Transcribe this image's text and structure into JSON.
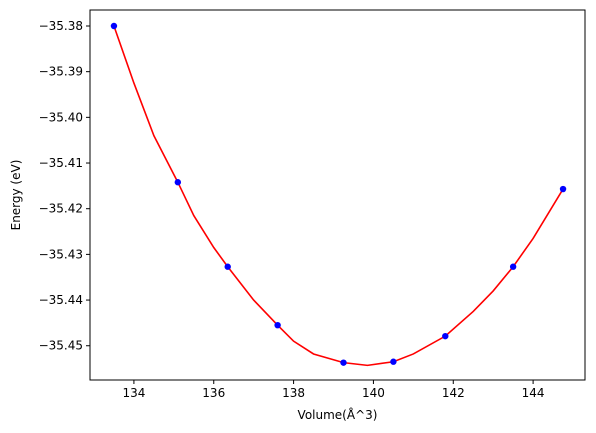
{
  "chart_data": {
    "type": "scatter",
    "title": "",
    "xlabel": "Volume(Å^3)",
    "ylabel": "Energy (eV)",
    "xlim": [
      132.9,
      145.3
    ],
    "ylim": [
      -35.4575,
      -35.3765
    ],
    "x_ticks": [
      134,
      136,
      138,
      140,
      142,
      144
    ],
    "y_ticks": [
      -35.45,
      -35.44,
      -35.43,
      -35.42,
      -35.41,
      -35.4,
      -35.39,
      -35.38
    ],
    "x_tick_labels": [
      "134",
      "136",
      "138",
      "140",
      "142",
      "144"
    ],
    "y_tick_labels": [
      "−35.45",
      "−35.44",
      "−35.43",
      "−35.42",
      "−35.41",
      "−35.40",
      "−35.39",
      "−35.38"
    ],
    "grid": false,
    "series": [
      {
        "kind": "points",
        "color": "#0000ff",
        "x": [
          133.5,
          135.1,
          136.35,
          137.6,
          139.25,
          140.5,
          141.8,
          143.5,
          144.75
        ],
        "y": [
          -35.38,
          -35.4142,
          -35.4327,
          -35.4455,
          -35.4537,
          -35.4535,
          -35.4479,
          -35.4327,
          -35.4157
        ]
      },
      {
        "kind": "fit-curve",
        "color": "#ff0000",
        "x": [
          133.5,
          134.0,
          134.5,
          135.1,
          135.5,
          136.0,
          136.35,
          137.0,
          137.6,
          138.0,
          138.5,
          139.25,
          139.85,
          140.5,
          141.0,
          141.8,
          142.5,
          143.0,
          143.5,
          144.0,
          144.75
        ],
        "y": [
          -35.38,
          -35.3925,
          -35.404,
          -35.4142,
          -35.4215,
          -35.4285,
          -35.4327,
          -35.44,
          -35.4455,
          -35.449,
          -35.4518,
          -35.4537,
          -35.4543,
          -35.4535,
          -35.4518,
          -35.4479,
          -35.4425,
          -35.438,
          -35.4327,
          -35.4265,
          -35.4157
        ]
      }
    ]
  }
}
